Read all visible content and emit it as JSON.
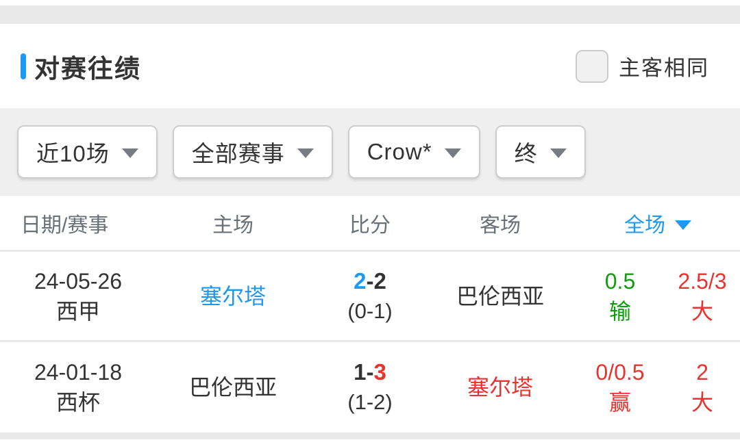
{
  "colors": {
    "accent_blue": "#1f99f0",
    "win_green": "#129a12",
    "loss_red": "#e7342e",
    "dark_text": "#333333",
    "header_gray": "#697077"
  },
  "header": {
    "title": "对赛往绩",
    "checkbox_label": "主客相同",
    "checkbox_checked": false
  },
  "filters": [
    {
      "label": "近10场"
    },
    {
      "label": "全部赛事"
    },
    {
      "label": "Crow*"
    },
    {
      "label": "终"
    }
  ],
  "table": {
    "columns": {
      "date": "日期/赛事",
      "home": "主场",
      "score": "比分",
      "away": "客场",
      "full": "全场"
    },
    "rows": [
      {
        "date": "24-05-26",
        "competition": "西甲",
        "home": "塞尔塔",
        "home_color": "blue",
        "score": {
          "home": "2",
          "sep": "-",
          "away": "2",
          "home_color": "blue",
          "away_color": "dark",
          "half": "(0-1)"
        },
        "away": "巴伦西亚",
        "away_color": "dark",
        "handicap": {
          "line": "0.5",
          "result": "输",
          "color": "green"
        },
        "overunder": {
          "line": "2.5/3",
          "result": "大",
          "color": "red"
        }
      },
      {
        "date": "24-01-18",
        "competition": "西杯",
        "home": "巴伦西亚",
        "home_color": "dark",
        "score": {
          "home": "1",
          "sep": "-",
          "away": "3",
          "home_color": "dark",
          "away_color": "red",
          "half": "(1-2)"
        },
        "away": "塞尔塔",
        "away_color": "red",
        "handicap": {
          "line": "0/0.5",
          "result": "赢",
          "color": "red"
        },
        "overunder": {
          "line": "2",
          "result": "大",
          "color": "red"
        }
      }
    ]
  }
}
